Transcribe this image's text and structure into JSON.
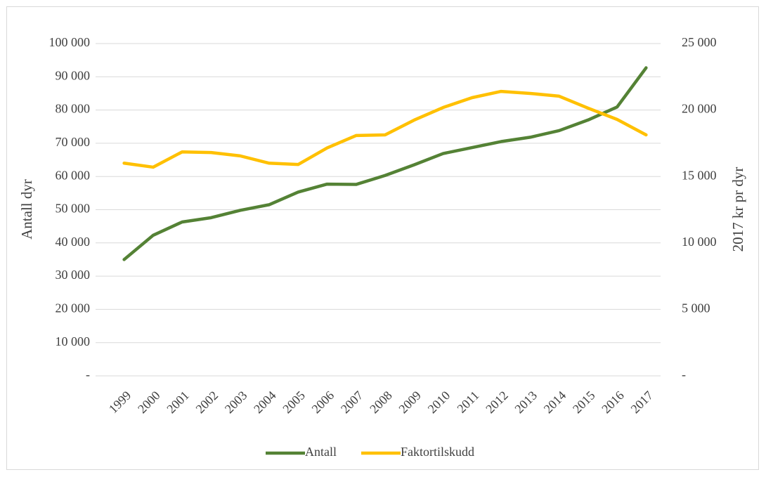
{
  "chart_data": {
    "type": "line",
    "categories": [
      "1999",
      "2000",
      "2001",
      "2002",
      "2003",
      "2004",
      "2005",
      "2006",
      "2007",
      "2008",
      "2009",
      "2010",
      "2011",
      "2012",
      "2013",
      "2014",
      "2015",
      "2016",
      "2017"
    ],
    "series": [
      {
        "name": "Antall",
        "color": "#548235",
        "axis": "y",
        "values": [
          35000,
          42300,
          46300,
          47600,
          49800,
          51500,
          55300,
          57700,
          57600,
          60300,
          63500,
          66900,
          68700,
          70500,
          71800,
          73800,
          77000,
          80900,
          92700
        ]
      },
      {
        "name": "Faktortilskudd",
        "color": "#ffc000",
        "axis": "y2",
        "values": [
          16000,
          15700,
          16850,
          16800,
          16550,
          16000,
          15900,
          17150,
          18080,
          18130,
          19240,
          20190,
          20930,
          21400,
          21250,
          21040,
          20140,
          19290,
          18130
        ]
      }
    ],
    "ylabel": "Antall dyr",
    "y2label": "2017 kr pr dyr",
    "ylim": [
      0,
      100000
    ],
    "yticks": [
      {
        "value": 0,
        "label": "-"
      },
      {
        "value": 10000,
        "label": "10 000"
      },
      {
        "value": 20000,
        "label": "20 000"
      },
      {
        "value": 30000,
        "label": "30 000"
      },
      {
        "value": 40000,
        "label": "40 000"
      },
      {
        "value": 50000,
        "label": "50 000"
      },
      {
        "value": 60000,
        "label": "60 000"
      },
      {
        "value": 70000,
        "label": "70 000"
      },
      {
        "value": 80000,
        "label": "80 000"
      },
      {
        "value": 90000,
        "label": "90 000"
      },
      {
        "value": 100000,
        "label": "100 000"
      }
    ],
    "y2lim": [
      0,
      25000
    ],
    "y2ticks": [
      {
        "value": 0,
        "label": "-"
      },
      {
        "value": 5000,
        "label": "5 000"
      },
      {
        "value": 10000,
        "label": "10 000"
      },
      {
        "value": 15000,
        "label": "15 000"
      },
      {
        "value": 20000,
        "label": "20 000"
      },
      {
        "value": 25000,
        "label": "25 000"
      }
    ],
    "grid": true,
    "legend": "bottom"
  }
}
